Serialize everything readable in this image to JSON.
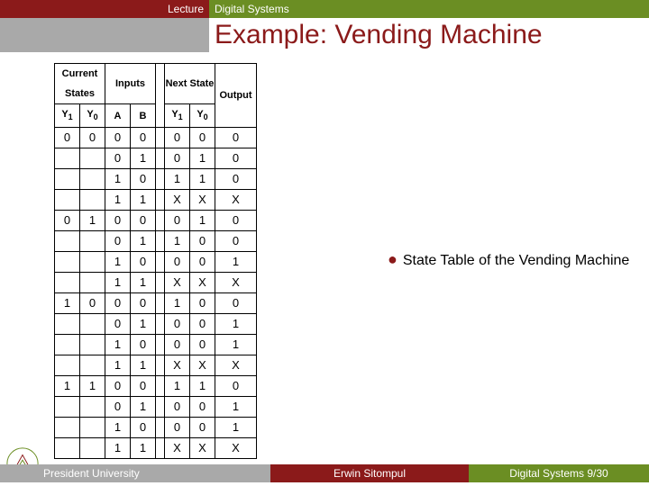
{
  "banner": {
    "lecture_label": "Lecture",
    "course_title": "Digital Systems",
    "slide_title": "Example: Vending Machine"
  },
  "table": {
    "headers": {
      "current_states": "Current States",
      "inputs": "Inputs",
      "next_state": "Next State",
      "output": "Output",
      "Y1": "Y",
      "Y1sub": "1",
      "Y0": "Y",
      "Y0sub": "0",
      "A": "A",
      "B": "B",
      "NY1": "Y",
      "NY1sub": "1",
      "NY0": "Y",
      "NY0sub": "0"
    },
    "rows": [
      {
        "cs": [
          "0",
          "0"
        ],
        "in": [
          "0",
          "0"
        ],
        "ns": [
          "0",
          "0"
        ],
        "out": "0"
      },
      {
        "cs": [
          "",
          ""
        ],
        "in": [
          "0",
          "1"
        ],
        "ns": [
          "0",
          "1"
        ],
        "out": "0"
      },
      {
        "cs": [
          "",
          ""
        ],
        "in": [
          "1",
          "0"
        ],
        "ns": [
          "1",
          "1"
        ],
        "out": "0"
      },
      {
        "cs": [
          "",
          ""
        ],
        "in": [
          "1",
          "1"
        ],
        "ns": [
          "X",
          "X"
        ],
        "out": "X"
      },
      {
        "cs": [
          "0",
          "1"
        ],
        "in": [
          "0",
          "0"
        ],
        "ns": [
          "0",
          "1"
        ],
        "out": "0"
      },
      {
        "cs": [
          "",
          ""
        ],
        "in": [
          "0",
          "1"
        ],
        "ns": [
          "1",
          "0"
        ],
        "out": "0"
      },
      {
        "cs": [
          "",
          ""
        ],
        "in": [
          "1",
          "0"
        ],
        "ns": [
          "0",
          "0"
        ],
        "out": "1"
      },
      {
        "cs": [
          "",
          ""
        ],
        "in": [
          "1",
          "1"
        ],
        "ns": [
          "X",
          "X"
        ],
        "out": "X"
      },
      {
        "cs": [
          "1",
          "0"
        ],
        "in": [
          "0",
          "0"
        ],
        "ns": [
          "1",
          "0"
        ],
        "out": "0"
      },
      {
        "cs": [
          "",
          ""
        ],
        "in": [
          "0",
          "1"
        ],
        "ns": [
          "0",
          "0"
        ],
        "out": "1"
      },
      {
        "cs": [
          "",
          ""
        ],
        "in": [
          "1",
          "0"
        ],
        "ns": [
          "0",
          "0"
        ],
        "out": "1"
      },
      {
        "cs": [
          "",
          ""
        ],
        "in": [
          "1",
          "1"
        ],
        "ns": [
          "X",
          "X"
        ],
        "out": "X"
      },
      {
        "cs": [
          "1",
          "1"
        ],
        "in": [
          "0",
          "0"
        ],
        "ns": [
          "1",
          "1"
        ],
        "out": "0"
      },
      {
        "cs": [
          "",
          ""
        ],
        "in": [
          "0",
          "1"
        ],
        "ns": [
          "0",
          "0"
        ],
        "out": "1"
      },
      {
        "cs": [
          "",
          ""
        ],
        "in": [
          "1",
          "0"
        ],
        "ns": [
          "0",
          "0"
        ],
        "out": "1"
      },
      {
        "cs": [
          "",
          ""
        ],
        "in": [
          "1",
          "1"
        ],
        "ns": [
          "X",
          "X"
        ],
        "out": "X"
      }
    ]
  },
  "bullet_text": "State Table of the Vending Machine",
  "footer": {
    "left": "President University",
    "mid": "Erwin Sitompul",
    "right": "Digital Systems 9/30"
  },
  "colors": {
    "maroon": "#8b1a1a",
    "olive": "#6b8e23",
    "grey": "#a9a9a9",
    "white": "#ffffff",
    "black": "#000000"
  }
}
